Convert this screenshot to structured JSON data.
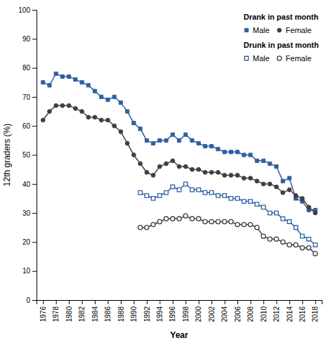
{
  "chart_data": {
    "type": "line",
    "xlabel": "Year",
    "ylabel": "12th graders (%)",
    "x": [
      1976,
      1977,
      1978,
      1979,
      1980,
      1981,
      1982,
      1983,
      1984,
      1985,
      1986,
      1987,
      1988,
      1989,
      1990,
      1991,
      1992,
      1993,
      1994,
      1995,
      1996,
      1997,
      1998,
      1999,
      2000,
      2001,
      2002,
      2003,
      2004,
      2005,
      2006,
      2007,
      2008,
      2009,
      2010,
      2011,
      2012,
      2013,
      2014,
      2015,
      2016,
      2017,
      2018
    ],
    "series": [
      {
        "name": "Male",
        "group": "Drank in past month",
        "color": "#2E5FA3",
        "marker": "square",
        "values": [
          75,
          74,
          78,
          77,
          77,
          76,
          75,
          74,
          72,
          70,
          69,
          70,
          68,
          65,
          61,
          59,
          55,
          54,
          55,
          55,
          57,
          55,
          57,
          55,
          54,
          53,
          53,
          52,
          51,
          51,
          51,
          50,
          50,
          48,
          48,
          47,
          46,
          41,
          42,
          35,
          34,
          31,
          31
        ]
      },
      {
        "name": "Female",
        "group": "Drank in past month",
        "color": "#404040",
        "marker": "circle",
        "values": [
          62,
          65,
          67,
          67,
          67,
          66,
          65,
          63,
          63,
          62,
          62,
          60,
          58,
          54,
          50,
          47,
          44,
          43,
          46,
          47,
          48,
          46,
          46,
          45,
          45,
          44,
          44,
          44,
          43,
          43,
          43,
          42,
          42,
          41,
          40,
          40,
          39,
          37,
          38,
          36,
          35,
          32,
          30
        ]
      },
      {
        "name": "Male",
        "group": "Drunk in past month",
        "color": "#2E5FA3",
        "marker": "square-open",
        "values": [
          null,
          null,
          null,
          null,
          null,
          null,
          null,
          null,
          null,
          null,
          null,
          null,
          null,
          null,
          null,
          37,
          36,
          35,
          36,
          37,
          39,
          38,
          40,
          38,
          38,
          37,
          37,
          36,
          36,
          35,
          35,
          34,
          34,
          33,
          32,
          30,
          30,
          28,
          27,
          25,
          22,
          21,
          19
        ]
      },
      {
        "name": "Female",
        "group": "Drunk in past month",
        "color": "#404040",
        "marker": "circle-open",
        "values": [
          null,
          null,
          null,
          null,
          null,
          null,
          null,
          null,
          null,
          null,
          null,
          null,
          null,
          null,
          null,
          25,
          25,
          26,
          27,
          28,
          28,
          28,
          29,
          28,
          28,
          27,
          27,
          27,
          27,
          27,
          26,
          26,
          26,
          25,
          22,
          21,
          21,
          20,
          19,
          19,
          18,
          18,
          16
        ]
      }
    ],
    "xlim": [
      1975,
      2019
    ],
    "ylim": [
      0,
      100
    ],
    "xticks": [
      1976,
      1978,
      1980,
      1982,
      1984,
      1986,
      1988,
      1990,
      1992,
      1994,
      1996,
      1998,
      2000,
      2002,
      2004,
      2006,
      2008,
      2010,
      2012,
      2014,
      2016,
      2018
    ],
    "yticks": [
      0,
      10,
      20,
      30,
      40,
      50,
      60,
      70,
      80,
      90,
      100
    ],
    "legend": "upper right",
    "grid": false
  }
}
